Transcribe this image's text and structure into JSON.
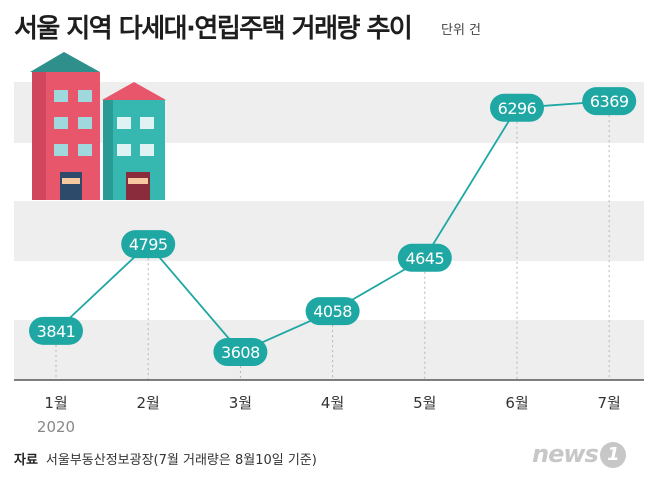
{
  "title": "서울 지역 다세대·연립주택 거래량 추이",
  "unit_label": "단위 건",
  "source_label": "자료",
  "source_text": "서울부동산정보광장(7월 거래량은 8월10일 기준)",
  "logo": {
    "text": "news",
    "mark": "1"
  },
  "colors": {
    "accent": "#1fa7a4",
    "band": "#eeeeee",
    "axis": "#555555"
  },
  "chart_data": {
    "type": "line",
    "title": "서울 지역 다세대·연립주택 거래량 추이",
    "categories": [
      "1월",
      "2월",
      "3월",
      "4월",
      "5월",
      "6월",
      "7월"
    ],
    "year_label": "2020",
    "values": [
      3841,
      4795,
      3608,
      4058,
      4645,
      6296,
      6369
    ],
    "ylim": [
      3300,
      6800
    ],
    "xlabel": "",
    "ylabel": "",
    "grid": "horizontal bands"
  }
}
